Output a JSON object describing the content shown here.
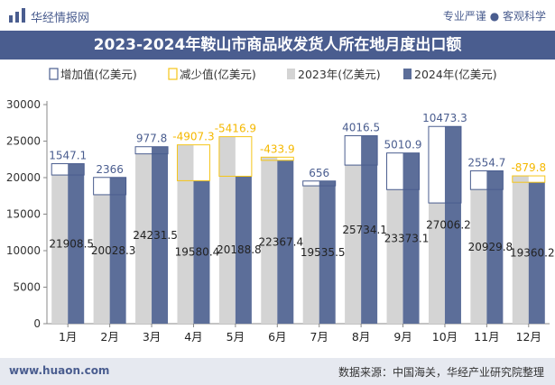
{
  "header": {
    "brand": "华经情报网",
    "tagline": "专业严谨 ● 客观科学",
    "title": "2023-2024年鞍山市商品收发货人所在地月度出口额"
  },
  "footer": {
    "website": "www.huaon.com",
    "source": "数据来源：中国海关，华经产业研究院整理"
  },
  "watermarks": [
    "华经产业研究院",
    "www.huaon.com"
  ],
  "colors": {
    "y2023": "#d4d4d4",
    "y2024": "#5c6e99",
    "increase": "#4a5d8f",
    "decrease": "#f5c518",
    "increase_label": "#4a5d8f",
    "decrease_label": "#f5b800"
  },
  "chart_data": {
    "type": "bar",
    "categories": [
      "1月",
      "2月",
      "3月",
      "4月",
      "5月",
      "6月",
      "7月",
      "8月",
      "9月",
      "10月",
      "11月",
      "12月"
    ],
    "series": [
      {
        "name": "2023年(亿美元)",
        "values": [
          20361.4,
          17662.3,
          23253.7,
          24487.7,
          25605.7,
          22801.3,
          18879.5,
          21717.5,
          18362.2,
          16532.9,
          18375.1,
          20240.0
        ]
      },
      {
        "name": "2024年(亿美元)",
        "values": [
          21908.5,
          20028.3,
          24231.5,
          19580.4,
          20188.8,
          22367.4,
          19535.5,
          25734.1,
          23373.1,
          27006.2,
          20929.8,
          19360.2
        ]
      }
    ],
    "difference": {
      "increase_name": "增加值(亿美元)",
      "decrease_name": "减少值(亿美元)",
      "values": [
        1547.1,
        2366,
        977.8,
        -4907.3,
        -5416.9,
        -433.9,
        656,
        4016.5,
        5010.9,
        10473.3,
        2554.7,
        -879.8
      ],
      "labels": [
        "1547.1",
        "2366",
        "977.8",
        "-4907.3",
        "-5416.9",
        "-433.9",
        "656",
        "4016.5",
        "5010.9",
        "10473.3",
        "2554.7",
        "-879.8"
      ]
    },
    "bar_labels_2024": [
      "21908.5",
      "20028.3",
      "24231.5",
      "19580.4",
      "20188.8",
      "22367.4",
      "19535.5",
      "25734.1",
      "23373.1",
      "27006.2",
      "20929.8",
      "19360.2"
    ],
    "ylim": [
      0,
      30000
    ],
    "yticks": [
      0,
      5000,
      10000,
      15000,
      20000,
      25000,
      30000
    ],
    "grid": false,
    "legend_position": "top"
  }
}
